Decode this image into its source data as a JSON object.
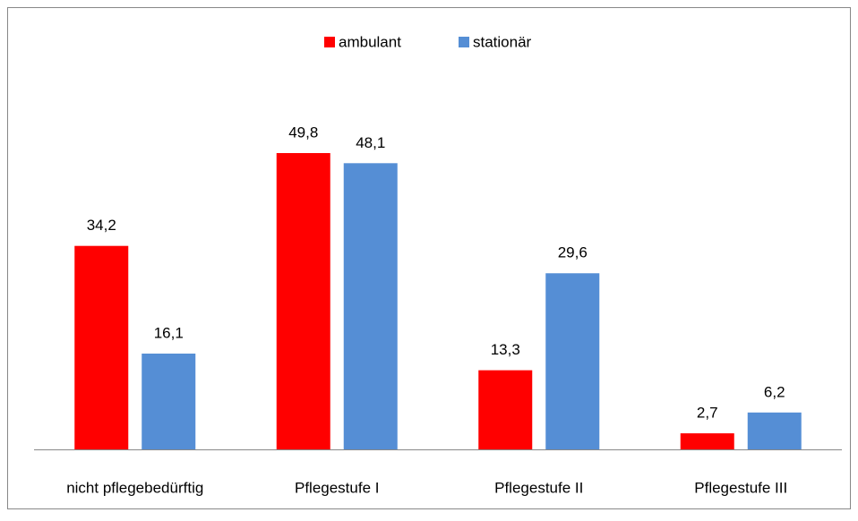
{
  "chart_data": {
    "type": "bar",
    "categories": [
      "nicht pflegebedürftig",
      "Pflegestufe I",
      "Pflegestufe II",
      "Pflegestufe III"
    ],
    "series": [
      {
        "name": "ambulant",
        "color": "#ff0000",
        "values": [
          34.2,
          49.8,
          13.3,
          2.7
        ],
        "value_labels": [
          "34,2",
          "49,8",
          "13,3",
          "2,7"
        ]
      },
      {
        "name": "stationär",
        "color": "#558ed5",
        "values": [
          16.1,
          48.1,
          29.6,
          6.2
        ],
        "value_labels": [
          "16,1",
          "48,1",
          "29,6",
          "6,2"
        ]
      }
    ],
    "legend": "top"
  }
}
